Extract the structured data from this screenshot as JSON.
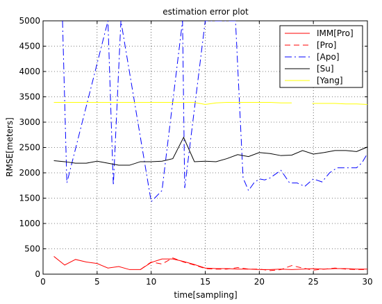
{
  "chart_data": {
    "type": "line",
    "title": "estimation error plot",
    "xlabel": "time[sampling]",
    "ylabel": "RMSE[meters]",
    "xlim": [
      0,
      30
    ],
    "ylim": [
      0,
      5000
    ],
    "xticks": [
      0,
      5,
      10,
      15,
      20,
      25,
      30
    ],
    "yticks": [
      0,
      500,
      1000,
      1500,
      2000,
      2500,
      3000,
      3500,
      4000,
      4500,
      5000
    ],
    "grid": true,
    "legend_position": "top-right",
    "series": [
      {
        "name": "IMM[Pro]",
        "color": "#ff0000",
        "style": "solid",
        "x": [
          1,
          2,
          3,
          4,
          5,
          6,
          7,
          8,
          9,
          10,
          11,
          12,
          13,
          14,
          15,
          16,
          17,
          18,
          19,
          20,
          21,
          22,
          23,
          24,
          25,
          26,
          27,
          28,
          29,
          30
        ],
        "y": [
          350,
          180,
          290,
          240,
          210,
          120,
          150,
          90,
          90,
          230,
          300,
          300,
          250,
          190,
          120,
          110,
          110,
          100,
          100,
          90,
          90,
          100,
          90,
          100,
          110,
          100,
          110,
          110,
          100,
          100
        ]
      },
      {
        "name": "[Pro]",
        "color": "#ff0000",
        "style": "dashed",
        "x": [
          9,
          10,
          11,
          12,
          13,
          14,
          15,
          16,
          17,
          18,
          19,
          20,
          21,
          22,
          23,
          24,
          25,
          26,
          27,
          28,
          29,
          30
        ],
        "y": [
          90,
          240,
          200,
          320,
          240,
          180,
          110,
          100,
          100,
          130,
          100,
          100,
          70,
          90,
          170,
          120,
          80,
          100,
          120,
          100,
          90,
          90
        ]
      },
      {
        "name": "[Apo]",
        "color": "#0000ff",
        "style": "dashdot",
        "x": [
          1.8,
          2.2,
          6.0,
          6.5,
          7.2,
          10.0,
          11.0,
          12.9,
          13.1,
          15.0,
          15.3,
          17.8,
          18.5,
          19.0,
          19.5,
          20.0,
          20.5,
          21.0,
          22.0,
          22.8,
          23.5,
          24.2,
          25.0,
          25.8,
          26.5,
          27.2,
          28.0,
          29.0,
          29.5,
          30.0
        ],
        "y": [
          5000,
          1800,
          5000,
          1750,
          5000,
          1430,
          1650,
          5000,
          1700,
          5000,
          5000,
          5000,
          1900,
          1650,
          1800,
          1880,
          1860,
          1900,
          2050,
          1800,
          1800,
          1730,
          1880,
          1820,
          2000,
          2100,
          2100,
          2100,
          2200,
          2380
        ]
      },
      {
        "name": "[Su]",
        "color": "#000000",
        "style": "solid",
        "x": [
          1,
          2,
          3,
          4,
          5,
          6,
          7,
          8,
          9,
          10,
          11,
          12,
          13,
          14,
          15,
          16,
          17,
          18,
          19,
          20,
          21,
          22,
          23,
          24,
          25,
          26,
          27,
          28,
          29,
          30
        ],
        "y": [
          2240,
          2220,
          2190,
          2190,
          2230,
          2190,
          2150,
          2150,
          2220,
          2220,
          2230,
          2280,
          2700,
          2220,
          2230,
          2220,
          2280,
          2360,
          2320,
          2400,
          2380,
          2340,
          2350,
          2440,
          2370,
          2400,
          2440,
          2440,
          2420,
          2510
        ]
      },
      {
        "name": "[Yang]",
        "color": "#ffff00",
        "style": "solid",
        "x": [
          1,
          2,
          3,
          4,
          5,
          6,
          7,
          8,
          9,
          10,
          11,
          12,
          13,
          14,
          15,
          16,
          17,
          18,
          19,
          20,
          21,
          22,
          23,
          null,
          24.9,
          25,
          26,
          27,
          28,
          29,
          30
        ],
        "y": [
          3390,
          3390,
          3390,
          3390,
          3390,
          3390,
          3390,
          3390,
          3390,
          3390,
          3390,
          3390,
          3390,
          3390,
          3350,
          3380,
          3390,
          3390,
          3390,
          3390,
          3390,
          3380,
          3380,
          null,
          3370,
          3370,
          3370,
          3370,
          3360,
          3360,
          3350
        ]
      }
    ]
  }
}
